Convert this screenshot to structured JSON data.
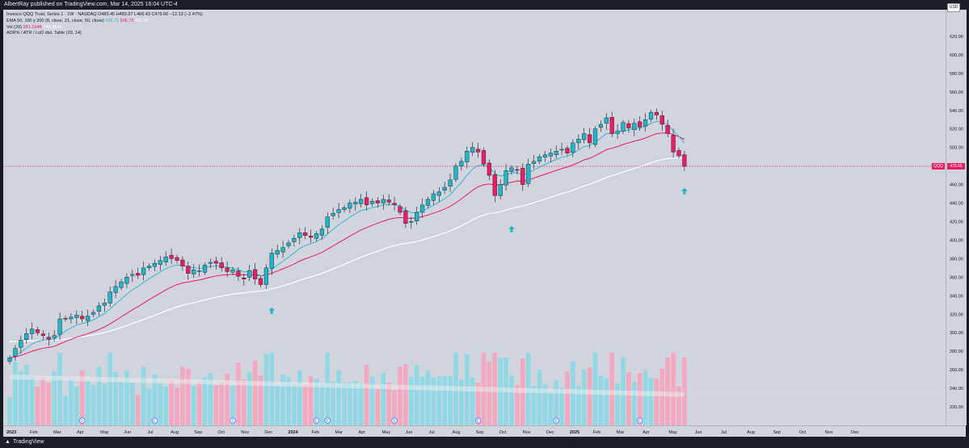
{
  "header": {
    "published": "AlbertRay published on TradingView.com, Mar 14, 2025 16:04 UTC-4"
  },
  "footer": {
    "brand": "TradingView"
  },
  "legend": {
    "symbol_line": "Invesco QQQ Trust, Series 1 · 1W · NASDAQ  O483.45  H483.97  L466.43  C479.66  −12.13 (−2.47%)",
    "ema_line": "EMA 50, 100 y 200 (8, close, 21, close, 50, close)",
    "ema_values": [
      "506.71",
      "506.73",
      "482.93"
    ],
    "vol_line": "Vol (20)",
    "vol_values": [
      "281.194K",
      "246.961K"
    ],
    "adr_line": "ADR% / ATR / LoD dist. Table (20, 14)"
  },
  "price_axis": {
    "currency": "USD"
  },
  "last_price": {
    "value": "479.66",
    "ticker": "QQQ"
  },
  "markers": {
    "earnings_label": "E",
    "earnings_count": 9
  },
  "colors": {
    "up": "#22b5c8",
    "down": "#e91e63",
    "ema8": "#38b6d0",
    "ema21": "#e91e63",
    "ema50": "#ffffff",
    "vol_up": "#8fd8e4",
    "vol_down": "#f4a7c0",
    "arrow": "#22b5c8",
    "background": "#d1d4dc"
  },
  "chart_data": {
    "type": "candlestick",
    "interval": "1W",
    "ylim": [
      200,
      640
    ],
    "yticks": [
      220,
      240,
      260,
      280,
      300,
      320,
      340,
      360,
      380,
      400,
      420,
      440,
      460,
      480,
      500,
      520,
      540,
      560,
      580,
      600,
      620
    ],
    "xticks": [
      "2023",
      "Feb",
      "Mar",
      "Apr",
      "May",
      "Jun",
      "Jul",
      "Aug",
      "Sep",
      "Oct",
      "Nov",
      "Dec",
      "2024",
      "Feb",
      "Mar",
      "Apr",
      "May",
      "Jun",
      "Jul",
      "Aug",
      "Sep",
      "Oct",
      "Nov",
      "Dec",
      "2025",
      "Feb",
      "Mar",
      "Apr",
      "May",
      "Jun",
      "Jul",
      "Aug",
      "Sep",
      "Oct",
      "Nov",
      "Dec"
    ],
    "weekly_closes": [
      273,
      283,
      292,
      299,
      304,
      300,
      297,
      293,
      297,
      315,
      315,
      317,
      319,
      315,
      318,
      322,
      329,
      332,
      344,
      350,
      355,
      360,
      363,
      362,
      370,
      372,
      375,
      378,
      382,
      380,
      378,
      372,
      364,
      368,
      367,
      373,
      376,
      375,
      370,
      366,
      368,
      361,
      358,
      367,
      358,
      352,
      370,
      386,
      389,
      392,
      397,
      402,
      408,
      405,
      403,
      407,
      412,
      425,
      429,
      433,
      435,
      440,
      441,
      444,
      438,
      442,
      440,
      444,
      441,
      438,
      430,
      418,
      420,
      430,
      438,
      444,
      450,
      452,
      457,
      465,
      480,
      485,
      496,
      500,
      495,
      482,
      470,
      448,
      460,
      475,
      478,
      476,
      460,
      482,
      485,
      490,
      492,
      494,
      496,
      498,
      494,
      505,
      509,
      515,
      505,
      520,
      525,
      532,
      515,
      518,
      527,
      521,
      526,
      522,
      530,
      538,
      535,
      525,
      515,
      495,
      491,
      479.66
    ],
    "ema8_last": 506.71,
    "ema21_last": 506.73,
    "ema50_last": 482.93
  }
}
